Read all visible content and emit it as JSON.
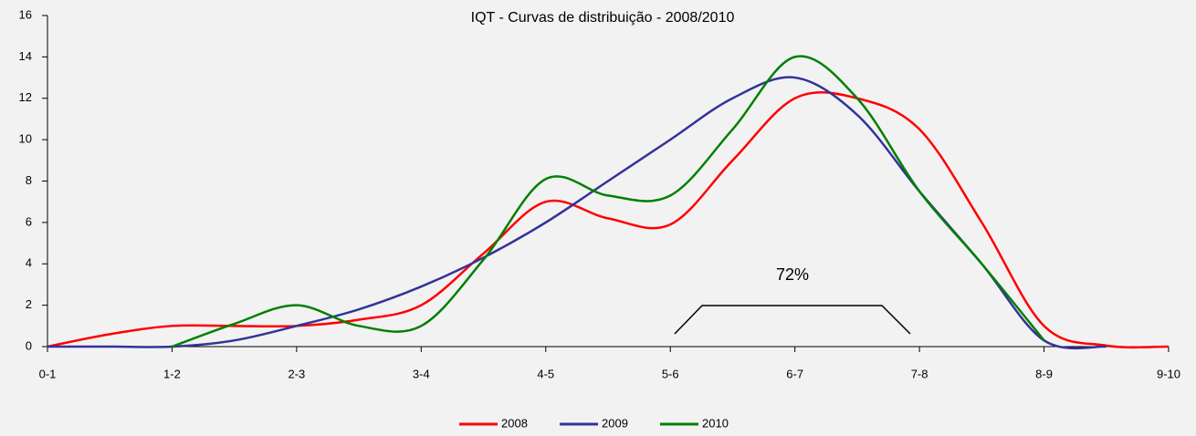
{
  "chart_data": {
    "type": "line",
    "title": "IQT - Curvas de distribuição - 2008/2010",
    "x": [
      0,
      0.5,
      1,
      1.5,
      2,
      2.5,
      3,
      3.5,
      4,
      4.5,
      5,
      5.5,
      6,
      6.5,
      7,
      7.5,
      8,
      8.5,
      9
    ],
    "xlim": [
      0,
      9
    ],
    "xticks": [
      {
        "value": 0,
        "label": "0-1"
      },
      {
        "value": 1,
        "label": "1-2"
      },
      {
        "value": 2,
        "label": "2-3"
      },
      {
        "value": 3,
        "label": "3-4"
      },
      {
        "value": 4,
        "label": "4-5"
      },
      {
        "value": 5,
        "label": "5-6"
      },
      {
        "value": 6,
        "label": "6-7"
      },
      {
        "value": 7,
        "label": "7-8"
      },
      {
        "value": 8,
        "label": "8-9"
      },
      {
        "value": 9,
        "label": "9-10"
      }
    ],
    "ylim": [
      0,
      16
    ],
    "yticks": [
      0,
      2,
      4,
      6,
      8,
      10,
      12,
      14,
      16
    ],
    "series": [
      {
        "name": "2008",
        "color": "#ff0000",
        "values": [
          0,
          0.6,
          1.0,
          1.0,
          1.0,
          1.3,
          2.0,
          4.5,
          7.0,
          6.2,
          5.9,
          9.0,
          12.0,
          12.0,
          10.5,
          6.0,
          1.0,
          0.05,
          0
        ]
      },
      {
        "name": "2009",
        "color": "#333399",
        "values": [
          0,
          0,
          0,
          0.3,
          1.0,
          1.8,
          2.9,
          4.3,
          6.0,
          8.0,
          10.0,
          12.0,
          13.0,
          11.2,
          7.5,
          4.0,
          0.3,
          0,
          null
        ]
      },
      {
        "name": "2010",
        "color": "#008000",
        "values": [
          null,
          null,
          0,
          1.1,
          2.0,
          1.0,
          1.0,
          4.2,
          8.1,
          7.3,
          7.3,
          10.5,
          14.0,
          12.0,
          7.5,
          4.0,
          0.3,
          null,
          null
        ]
      }
    ],
    "annotation": "72%",
    "legend": "bottom"
  }
}
